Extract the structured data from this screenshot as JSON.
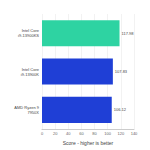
{
  "chart_data": {
    "type": "bar",
    "orientation": "horizontal",
    "categories": [
      "Intel Core\ni9-13900KS",
      "Intel Core\ni9-13900K",
      "AMD Ryzen 9\n7950X"
    ],
    "values": [
      117.98,
      107.83,
      106.12
    ],
    "colors": [
      "#2ed3a2",
      "#1f3fd6",
      "#1f3fd6"
    ],
    "xlabel": "Score - higher is better",
    "xlim": [
      0,
      140
    ],
    "xticks": [
      0,
      20,
      40,
      60,
      80,
      100,
      120,
      140
    ],
    "grid": true,
    "data_labels": true
  }
}
